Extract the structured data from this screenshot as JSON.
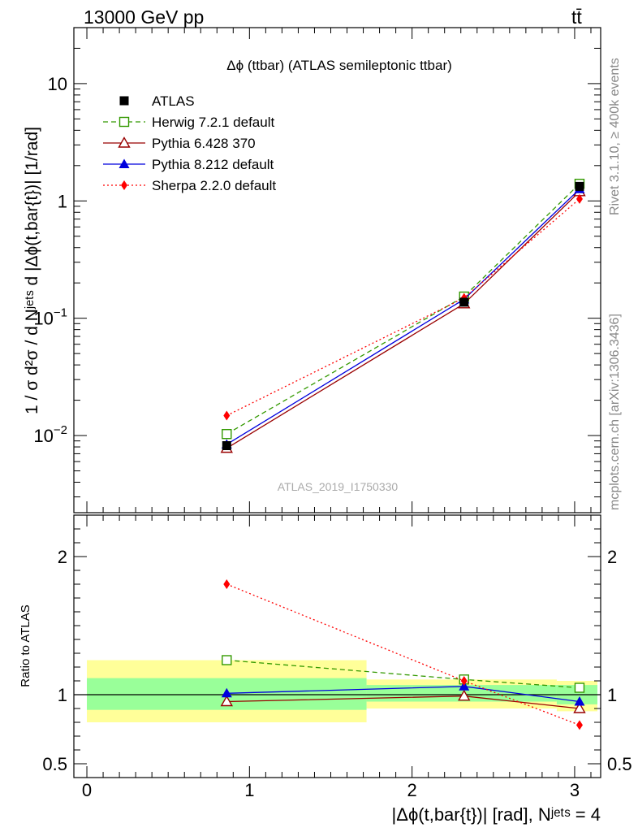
{
  "header": {
    "left": "13000 GeV pp",
    "right_t": "t",
    "right_tbar": "t̄"
  },
  "side": {
    "rivet": "Rivet 3.1.10, ≥ 400k events",
    "mcplots": "mcplots.cern.ch [arXiv:1306.3436]"
  },
  "chart_data": [
    {
      "type": "line",
      "title": "Δϕ (ttbar) (ATLAS semileptonic ttbar)",
      "watermark": "ATLAS_2019_I1750330",
      "yscale": "log",
      "ylim": [
        0.0022,
        30
      ],
      "xlim": [
        -0.08,
        3.16
      ],
      "ylabel": "1 / σ d²σ / d Nʲᵉᵗˢ d |Δϕ(t,bar{t})| [1/rad]",
      "y_ticks": [
        {
          "value": 0.01,
          "base": "10",
          "exp": "−2"
        },
        {
          "value": 0.1,
          "base": "10",
          "exp": "−1"
        },
        {
          "value": 1,
          "label": "1"
        },
        {
          "value": 10,
          "label": "10"
        }
      ],
      "x": [
        0.86,
        2.32,
        3.03
      ],
      "series": [
        {
          "name": "ATLAS",
          "color": "#000000",
          "marker": "square-filled",
          "line": "none",
          "values": [
            0.0082,
            0.137,
            1.33
          ],
          "band": [
            [
              0.0,
              1.72
            ],
            [
              1.72,
              2.89
            ],
            [
              2.89,
              3.14
            ]
          ]
        },
        {
          "name": "Herwig 7.2.1 default",
          "color": "#339900",
          "marker": "square-open",
          "line": "dashed",
          "values": [
            0.0103,
            0.153,
            1.4
          ]
        },
        {
          "name": "Pythia 6.428 370",
          "color": "#990000",
          "marker": "triangle-open",
          "line": "solid",
          "values": [
            0.0078,
            0.133,
            1.2
          ]
        },
        {
          "name": "Pythia 8.212 default",
          "color": "#0000dd",
          "marker": "triangle-filled",
          "line": "solid",
          "values": [
            0.0084,
            0.145,
            1.26
          ]
        },
        {
          "name": "Sherpa 2.2.0 default",
          "color": "#ff0000",
          "marker": "diamond",
          "line": "dotted",
          "values": [
            0.0148,
            0.149,
            1.04
          ]
        }
      ]
    },
    {
      "type": "line",
      "ylabel": "Ratio to ATLAS",
      "xlabel": "|Δϕ(t,bar{t})| [rad], Nʲᵉᵗˢ = 4",
      "ylim": [
        0.4,
        2.3
      ],
      "xlim": [
        -0.08,
        3.16
      ],
      "x_ticks": [
        "0",
        "1",
        "2",
        "3"
      ],
      "y_ticks": [
        "0.5",
        "1",
        "2"
      ],
      "bands": [
        {
          "x": [
            0.0,
            1.72
          ],
          "inner": [
            0.89,
            1.12
          ],
          "outer": [
            0.8,
            1.25
          ]
        },
        {
          "x": [
            1.72,
            2.89
          ],
          "inner": [
            0.95,
            1.07
          ],
          "outer": [
            0.9,
            1.11
          ]
        },
        {
          "x": [
            2.89,
            3.14
          ],
          "inner": [
            0.93,
            1.07
          ],
          "outer": [
            0.88,
            1.1
          ]
        }
      ],
      "x": [
        0.86,
        2.32,
        3.03
      ],
      "series": [
        {
          "name": "ATLAS",
          "color": "#000000",
          "values": [
            1.0,
            1.0,
            1.0
          ]
        },
        {
          "name": "Herwig 7.2.1 default",
          "color": "#339900",
          "values": [
            1.25,
            1.11,
            1.05
          ]
        },
        {
          "name": "Pythia 6.428 370",
          "color": "#990000",
          "values": [
            0.95,
            0.99,
            0.9
          ]
        },
        {
          "name": "Pythia 8.212 default",
          "color": "#0000dd",
          "values": [
            1.01,
            1.06,
            0.95
          ]
        },
        {
          "name": "Sherpa 2.2.0 default",
          "color": "#ff0000",
          "values": [
            1.8,
            1.1,
            0.78
          ]
        }
      ]
    }
  ]
}
